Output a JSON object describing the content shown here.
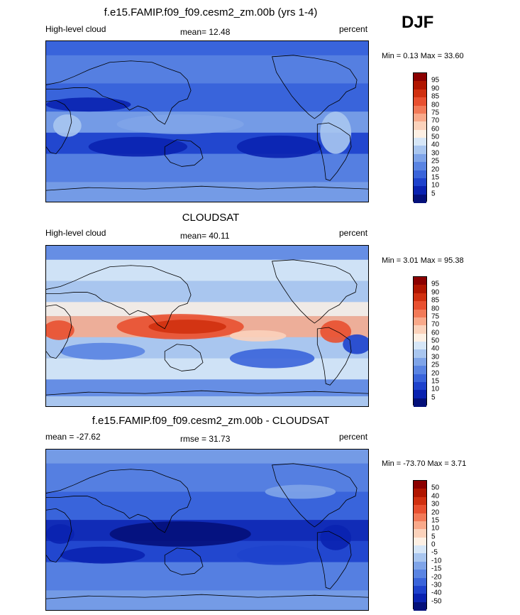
{
  "season": "DJF",
  "panels": [
    {
      "title": "f.e15.FAMIP.f09_f09.cesm2_zm.00b (yrs 1-4)",
      "left_label": "High-level cloud",
      "center_label": "mean=  12.48",
      "right_label": "percent",
      "minmax": "Min =   0.13 Max =  33.60",
      "colorbar_levels": [
        "95",
        "90",
        "85",
        "80",
        "75",
        "70",
        "60",
        "50",
        "40",
        "30",
        "25",
        "20",
        "15",
        "10",
        "5"
      ],
      "colorbar_colors": [
        "#8b0000",
        "#b01500",
        "#d03010",
        "#e85030",
        "#f27a58",
        "#f9a98a",
        "#fbd2bb",
        "#fdf0e4",
        "#d6e6f7",
        "#a9c6ef",
        "#7fa4e8",
        "#5a84e2",
        "#3a64da",
        "#1e42cc",
        "#0a22b0",
        "#04107a"
      ],
      "field": "model"
    },
    {
      "title": "CLOUDSAT",
      "left_label": "High-level cloud",
      "center_label": "mean=  40.11",
      "right_label": "percent",
      "minmax": "Min =   3.01 Max =  95.38",
      "colorbar_levels": [
        "95",
        "90",
        "85",
        "80",
        "75",
        "70",
        "60",
        "50",
        "40",
        "30",
        "25",
        "20",
        "15",
        "10",
        "5"
      ],
      "colorbar_colors": [
        "#8b0000",
        "#b01500",
        "#d03010",
        "#e85030",
        "#f27a58",
        "#f9a98a",
        "#fbd2bb",
        "#fdf0e4",
        "#d6e6f7",
        "#a9c6ef",
        "#7fa4e8",
        "#5a84e2",
        "#3a64da",
        "#1e42cc",
        "#0a22b0",
        "#04107a"
      ],
      "field": "obs"
    },
    {
      "title": "f.e15.FAMIP.f09_f09.cesm2_zm.00b - CLOUDSAT",
      "left_label": "mean = -27.62",
      "center_label": "rmse =  31.73",
      "right_label": "percent",
      "minmax": "Min = -73.70 Max =   3.71",
      "colorbar_levels": [
        "50",
        "40",
        "30",
        "20",
        "15",
        "10",
        "5",
        "0",
        "-5",
        "-10",
        "-15",
        "-20",
        "-30",
        "-40",
        "-50"
      ],
      "colorbar_colors": [
        "#8b0000",
        "#b01500",
        "#d03010",
        "#e85030",
        "#f27a58",
        "#f9a98a",
        "#fbd2bb",
        "#fdf0e4",
        "#d6e6f7",
        "#a9c6ef",
        "#7fa4e8",
        "#5a84e2",
        "#3a64da",
        "#1e42cc",
        "#0a22b0",
        "#04107a"
      ],
      "field": "diff"
    }
  ]
}
